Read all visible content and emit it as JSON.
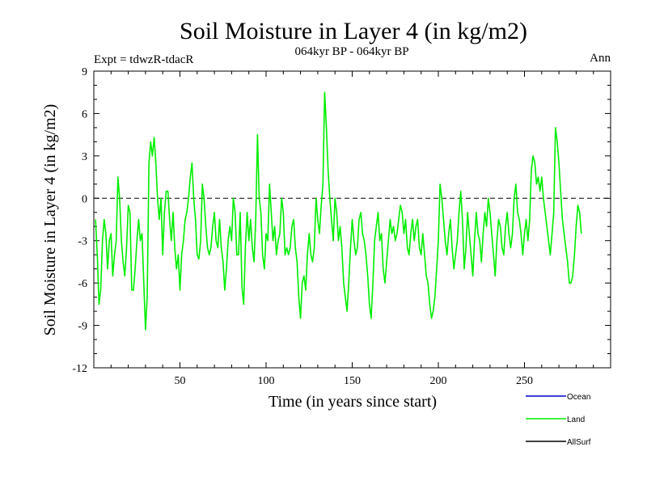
{
  "chart_data": {
    "type": "line",
    "title": "Soil Moisture in Layer 4 (in kg/m2)",
    "subtitle": "064kyr BP - 064kyr BP",
    "left_note": "Expt = tdwzR-tdacR",
    "right_note": "Ann",
    "xlabel": "Time (in years since start)",
    "ylabel": "Soil Moisture in Layer 4 (in kg/m2)",
    "xlim": [
      0,
      300
    ],
    "ylim": [
      -12,
      9
    ],
    "xticks": [
      50,
      100,
      150,
      200,
      250
    ],
    "yticks": [
      -12,
      -9,
      -6,
      -3,
      0,
      3,
      6,
      9
    ],
    "zero_line": true,
    "legend_position": "bottom-right",
    "legend": [
      {
        "name": "Ocean",
        "color": "#0000cc"
      },
      {
        "name": "Land",
        "color": "#00ee00"
      },
      {
        "name": "AllSurf",
        "color": "#000000"
      }
    ],
    "series": [
      {
        "name": "Land",
        "color": "#00ee00",
        "x_start": 1,
        "x_step": 1,
        "values": [
          -1.5,
          -4,
          -7.5,
          -6.5,
          -3,
          -1.5,
          -2.5,
          -5,
          -3,
          -2.5,
          -5.5,
          -4,
          -3,
          1.5,
          0,
          -3,
          -4.5,
          -5.5,
          -3.5,
          -0.5,
          -1,
          -6.5,
          -6.5,
          -5,
          -3,
          -1.5,
          -3,
          -2.5,
          -6,
          -9.3,
          -7,
          2.5,
          4,
          3,
          4.3,
          2.5,
          0,
          -1.5,
          0,
          -4,
          -1,
          0.5,
          0.5,
          -1.5,
          -3,
          -1,
          -3.5,
          -5,
          -4,
          -6.5,
          -4,
          -3,
          -1.5,
          -1,
          0,
          1.5,
          2.5,
          0,
          -1.5,
          -4,
          -4.3,
          -3,
          1,
          0,
          -2,
          -3.5,
          -4,
          -3.5,
          -2,
          -1,
          -3,
          -3.5,
          -1.5,
          -3.5,
          -4.5,
          -6.5,
          -5,
          -3,
          -2,
          -3,
          0,
          -1,
          -4,
          -4,
          -1,
          -6.3,
          -7.5,
          -3.5,
          -1,
          -3,
          -1.5,
          -3.5,
          -4.5,
          -1.5,
          4.5,
          0,
          -1,
          -4,
          -5,
          -2.5,
          -3,
          1,
          -1,
          -3,
          -2,
          -4,
          -3,
          -2.5,
          0,
          -1,
          -4,
          -3.5,
          -4,
          -3.5,
          -2,
          -1.5,
          -3.5,
          -4.5,
          -7,
          -8.5,
          -6,
          -5.5,
          -6.5,
          -4,
          -2.5,
          -4,
          -4.5,
          -3.5,
          0,
          -1.5,
          -2.5,
          -0.5,
          1,
          7.5,
          5,
          2,
          0,
          -1.5,
          -3,
          0,
          -1,
          -3,
          -2,
          -3.5,
          -6,
          -7,
          -8,
          -6,
          -3.5,
          -1.5,
          -3,
          -4,
          -3.5,
          -1.5,
          -1,
          -2.5,
          -3,
          -4,
          -5.5,
          -7.5,
          -8.5,
          -6,
          -3,
          -2,
          -1,
          -3,
          -2.5,
          -5,
          -6,
          -4.5,
          -3,
          -1.5,
          -2.5,
          -2,
          -3,
          -2.5,
          -1.5,
          -0.5,
          -1,
          -2.5,
          -1.5,
          -3.5,
          -4,
          -2.5,
          -1.5,
          -3,
          -2,
          -1.5,
          -3.5,
          -4,
          -2.5,
          -4,
          -5.5,
          -6,
          -7.5,
          -8.5,
          -8,
          -7,
          -5,
          -3,
          1,
          0,
          -1.5,
          -3,
          -4,
          -2.5,
          -1.5,
          -3.5,
          -5,
          -4,
          -3,
          -1,
          0.5,
          -1.5,
          -5,
          -3.5,
          -1,
          -2.5,
          -4,
          -5.5,
          -3,
          -1,
          -2.5,
          -3,
          -4.5,
          -2.5,
          -1,
          -2,
          0,
          -1,
          -2.5,
          -4,
          -5.5,
          -3,
          -1.5,
          -2,
          -3.5,
          -4,
          -2,
          -1,
          -2.5,
          -3.5,
          -2.5,
          0,
          1,
          -1,
          -1.5,
          -2.5,
          -4,
          -2.5,
          -1.5,
          -3,
          -1.5,
          2,
          3,
          2.5,
          1,
          1.5,
          0.5,
          1.5,
          0,
          -1,
          -2,
          -3,
          -4,
          -2.5,
          -1,
          5,
          4,
          2.5,
          0.5,
          -1.5,
          -2.5,
          -3.5,
          -4.5,
          -6,
          -6,
          -5.5,
          -4,
          -2,
          -0.5,
          -1,
          -2.5
        ]
      }
    ]
  }
}
